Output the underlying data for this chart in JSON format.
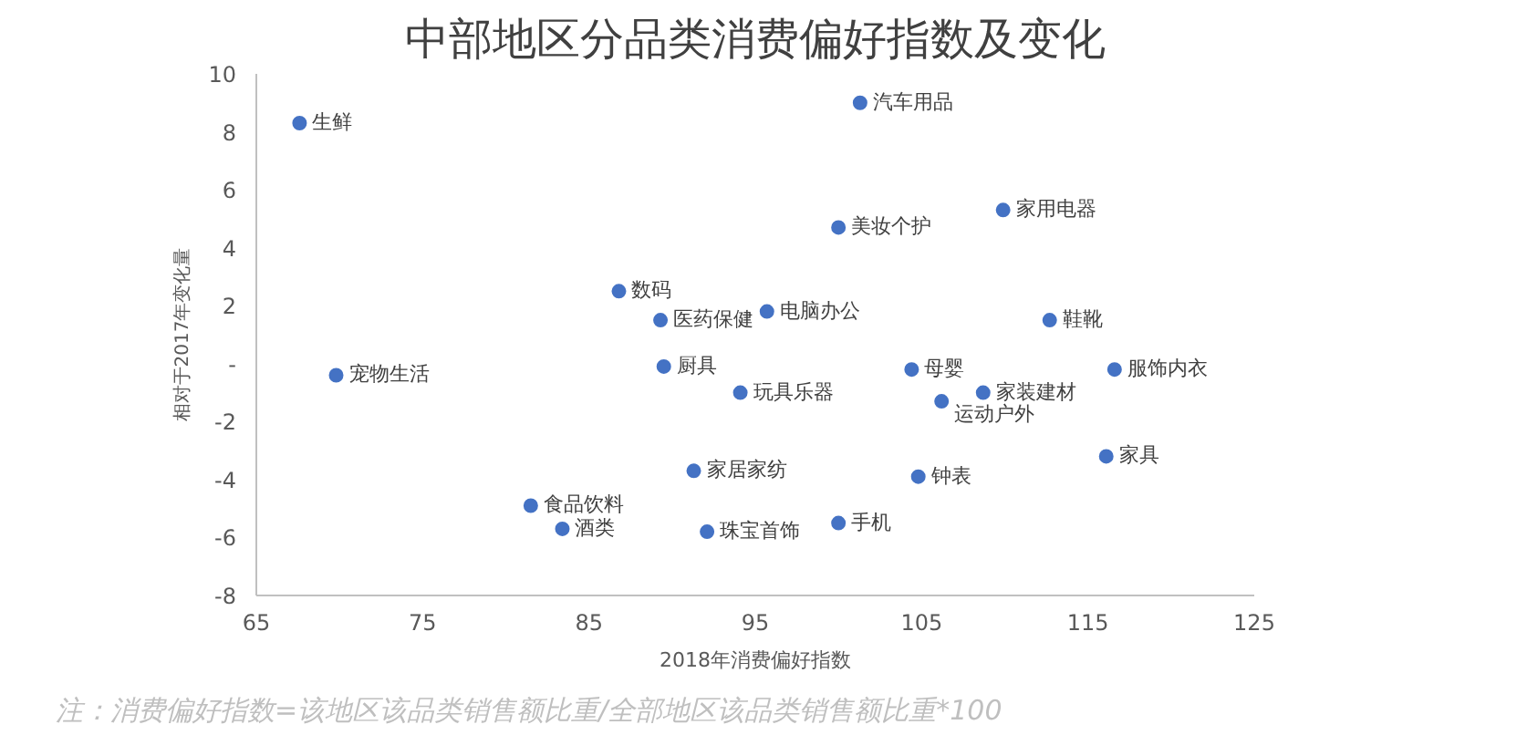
{
  "chart_data": {
    "type": "scatter",
    "title": "中部地区分品类消费偏好指数及变化",
    "xlabel": "2018年消费偏好指数",
    "ylabel": "相对于2017年变化量",
    "x": [
      67.6,
      69.8,
      86.8,
      89.3,
      89.5,
      95.7,
      94.1,
      91.3,
      81.5,
      83.4,
      92.1,
      101.3,
      100,
      109.9,
      112.7,
      104.4,
      108.7,
      106.2,
      116.6,
      116.1,
      104.8,
      100
    ],
    "series": [
      {
        "color": "#4472c4",
        "values": [
          8.3,
          -0.4,
          2.5,
          1.5,
          -0.1,
          1.8,
          -1.0,
          -3.7,
          -4.9,
          -5.7,
          -5.8,
          9.0,
          4.7,
          5.3,
          1.5,
          -0.2,
          -1.0,
          -1.3,
          -0.2,
          -3.2,
          -3.9,
          -5.5
        ]
      }
    ],
    "xlim": [
      65,
      125
    ],
    "xticks": [
      65,
      75,
      85,
      95,
      105,
      115,
      125
    ],
    "ylim": [
      -8,
      10
    ],
    "yticks": [
      -8,
      -6,
      -4,
      -2,
      {
        "value": 0,
        "label": "-"
      },
      2,
      4,
      6,
      8,
      10
    ],
    "grid": false,
    "marker": "circle",
    "annotations": [
      {
        "text": "生鲜",
        "x": 67.6,
        "y": 8.3
      },
      {
        "text": "宠物生活",
        "x": 69.8,
        "y": -0.4
      },
      {
        "text": "数码",
        "x": 86.8,
        "y": 2.5
      },
      {
        "text": "医药保健",
        "x": 89.3,
        "y": 1.5
      },
      {
        "text": "厨具",
        "x": 89.5,
        "y": -0.1
      },
      {
        "text": "电脑办公",
        "x": 95.7,
        "y": 1.8
      },
      {
        "text": "玩具乐器",
        "x": 94.1,
        "y": -1.0
      },
      {
        "text": "家居家纺",
        "x": 91.3,
        "y": -3.7
      },
      {
        "text": "食品饮料",
        "x": 81.5,
        "y": -4.9
      },
      {
        "text": "酒类",
        "x": 83.4,
        "y": -5.7
      },
      {
        "text": "珠宝首饰",
        "x": 92.1,
        "y": -5.8
      },
      {
        "text": "汽车用品",
        "x": 101.3,
        "y": 9.0
      },
      {
        "text": "美妆个护",
        "x": 100,
        "y": 4.7
      },
      {
        "text": "家用电器",
        "x": 109.9,
        "y": 5.3
      },
      {
        "text": "鞋靴",
        "x": 112.7,
        "y": 1.5
      },
      {
        "text": "母婴",
        "x": 104.4,
        "y": -0.2
      },
      {
        "text": "家装建材",
        "x": 108.7,
        "y": -1.0
      },
      {
        "text": "运动户外",
        "x": 106.2,
        "y": -1.3
      },
      {
        "text": "服饰内衣",
        "x": 116.6,
        "y": -0.2
      },
      {
        "text": "家具",
        "x": 116.1,
        "y": -3.2
      },
      {
        "text": "钟表",
        "x": 104.8,
        "y": -3.9
      },
      {
        "text": "手机",
        "x": 100,
        "y": -5.5
      },
      "注：消费偏好指数=该地区该品类销售额比重/全部地区该品类销售额比重*100"
    ]
  }
}
